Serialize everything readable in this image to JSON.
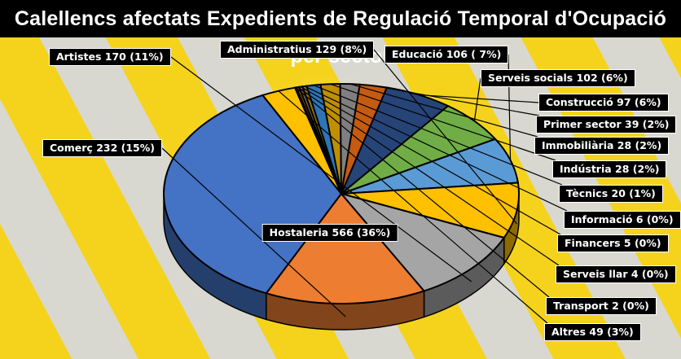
{
  "title": "Calellencs afectats Expedients de Regulació Temporal d'Ocupació per sector",
  "chart_data": {
    "type": "pie",
    "title": "Calellencs afectats Expedients de Regulació Temporal d'Ocupació per sector",
    "slices": [
      {
        "name": "Hostaleria",
        "value": 566,
        "percent": "36%",
        "label": "Hostaleria 566 (36%)",
        "color": "#4472C4"
      },
      {
        "name": "Altres",
        "value": 49,
        "percent": "3%",
        "label": "Altres 49 (3%)",
        "color": "#FFC000"
      },
      {
        "name": "Transport",
        "value": 2,
        "percent": "0%",
        "label": "Transport 2 (0%)",
        "color": "#264478"
      },
      {
        "name": "Serveis llar",
        "value": 4,
        "percent": "0%",
        "label": "Serveis llar 4 (0%)",
        "color": "#9E480E"
      },
      {
        "name": "Financers",
        "value": 5,
        "percent": "0%",
        "label": "Financers 5 (0%)",
        "color": "#636363"
      },
      {
        "name": "Informació",
        "value": 6,
        "percent": "0%",
        "label": "Informació 6 (0%)",
        "color": "#997300"
      },
      {
        "name": "Tècnics",
        "value": 20,
        "percent": "1%",
        "label": "Tècnics 20 (1%)",
        "color": "#2E75B6"
      },
      {
        "name": "Indústria",
        "value": 28,
        "percent": "2%",
        "label": "Indústria 28 (2%)",
        "color": "#BF8F00"
      },
      {
        "name": "Immobiliària",
        "value": 28,
        "percent": "2%",
        "label": "Immobiliària 28 (2%)",
        "color": "#7F7F7F"
      },
      {
        "name": "Primer sector",
        "value": 39,
        "percent": "2%",
        "label": "Primer sector 39 (2%)",
        "color": "#C55A11"
      },
      {
        "name": "Construcció",
        "value": 97,
        "percent": "6%",
        "label": "Construcció 97 (6%)",
        "color": "#264478"
      },
      {
        "name": "Serveis socials",
        "value": 102,
        "percent": "6%",
        "label": "Serveis socials 102 (6%)",
        "color": "#70AD47"
      },
      {
        "name": "Educació",
        "value": 106,
        "percent": "7%",
        "label": "Educació 106 ( 7%)",
        "color": "#5B9BD5"
      },
      {
        "name": "Administratius",
        "value": 129,
        "percent": "8%",
        "label": "Administratius 129 (8%)",
        "color": "#FFC000"
      },
      {
        "name": "Artistes",
        "value": 170,
        "percent": "11%",
        "label": "Artistes 170 (11%)",
        "color": "#A5A5A5"
      },
      {
        "name": "Comerç",
        "value": 232,
        "percent": "15%",
        "label": "Comerç 232 (15%)",
        "color": "#ED7D31"
      }
    ]
  }
}
